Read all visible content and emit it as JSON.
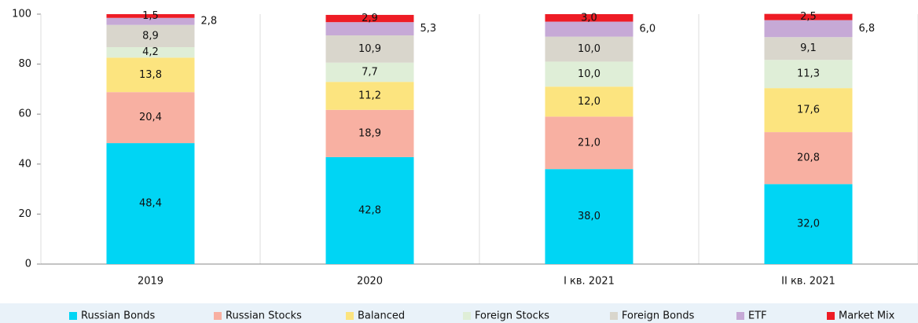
{
  "chart_data": {
    "type": "stacked_bar",
    "categories": [
      "2019",
      "2020",
      "I кв. 2021",
      "II кв. 2021"
    ],
    "ylim": [
      0,
      100
    ],
    "yticks": [
      0,
      20,
      40,
      60,
      80,
      100
    ],
    "series": [
      {
        "name": "Russian Bonds",
        "color": "#00d5f4",
        "values": [
          48.4,
          42.8,
          38.0,
          32.0
        ],
        "value_labels": [
          "48,4",
          "42,8",
          "38,0",
          "32,0"
        ]
      },
      {
        "name": "Russian Stocks",
        "color": "#f8b0a2",
        "values": [
          20.4,
          18.9,
          21.0,
          20.8
        ],
        "value_labels": [
          "20,4",
          "18,9",
          "21,0",
          "20,8"
        ]
      },
      {
        "name": "Balanced",
        "color": "#fce47f",
        "values": [
          13.8,
          11.2,
          12.0,
          17.6
        ],
        "value_labels": [
          "13,8",
          "11,2",
          "12,0",
          "17,6"
        ]
      },
      {
        "name": "Foreign Stocks",
        "color": "#dfeed7",
        "values": [
          4.2,
          7.7,
          10.0,
          11.3
        ],
        "value_labels": [
          "4,2",
          "7,7",
          "10,0",
          "11,3"
        ]
      },
      {
        "name": "Foreign Bonds",
        "color": "#d9d6cc",
        "values": [
          8.9,
          10.9,
          10.0,
          9.1
        ],
        "value_labels": [
          "8,9",
          "10,9",
          "10,0",
          "9,1"
        ]
      },
      {
        "name": "ETF",
        "color": "#c6a9d6",
        "values": [
          2.8,
          5.3,
          6.0,
          6.8
        ],
        "value_labels": [
          "2,8",
          "5,3",
          "6,0",
          "6,8"
        ]
      },
      {
        "name": "Market Mix",
        "color": "#ee1c25",
        "values": [
          1.5,
          2.9,
          3.0,
          2.5
        ],
        "value_labels": [
          "1,5",
          "2,9",
          "3,0",
          "2,5"
        ]
      }
    ]
  }
}
